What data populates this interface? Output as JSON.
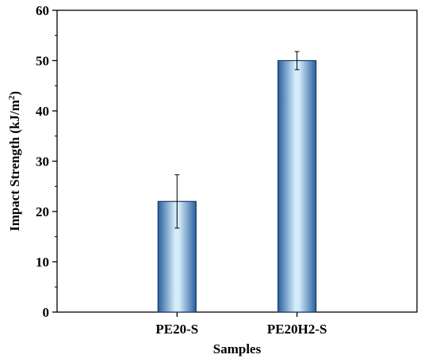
{
  "chart_data": {
    "type": "bar",
    "categories": [
      "PE20-S",
      "PE20H2-S"
    ],
    "values": [
      22,
      50
    ],
    "errors": [
      5.3,
      1.8
    ],
    "xlabel": "Samples",
    "ylabel_main": "Impact Strength (kJ/m",
    "ylabel_sup": "2",
    "ylabel_end": ")",
    "ylim": [
      0,
      60
    ],
    "yticks": [
      0,
      10,
      20,
      30,
      40,
      50,
      60
    ],
    "grid": false,
    "bar_color_dark": "#2a5f9e",
    "bar_color_light": "#d4ecfa",
    "bar_stroke": "#1a3a66"
  }
}
